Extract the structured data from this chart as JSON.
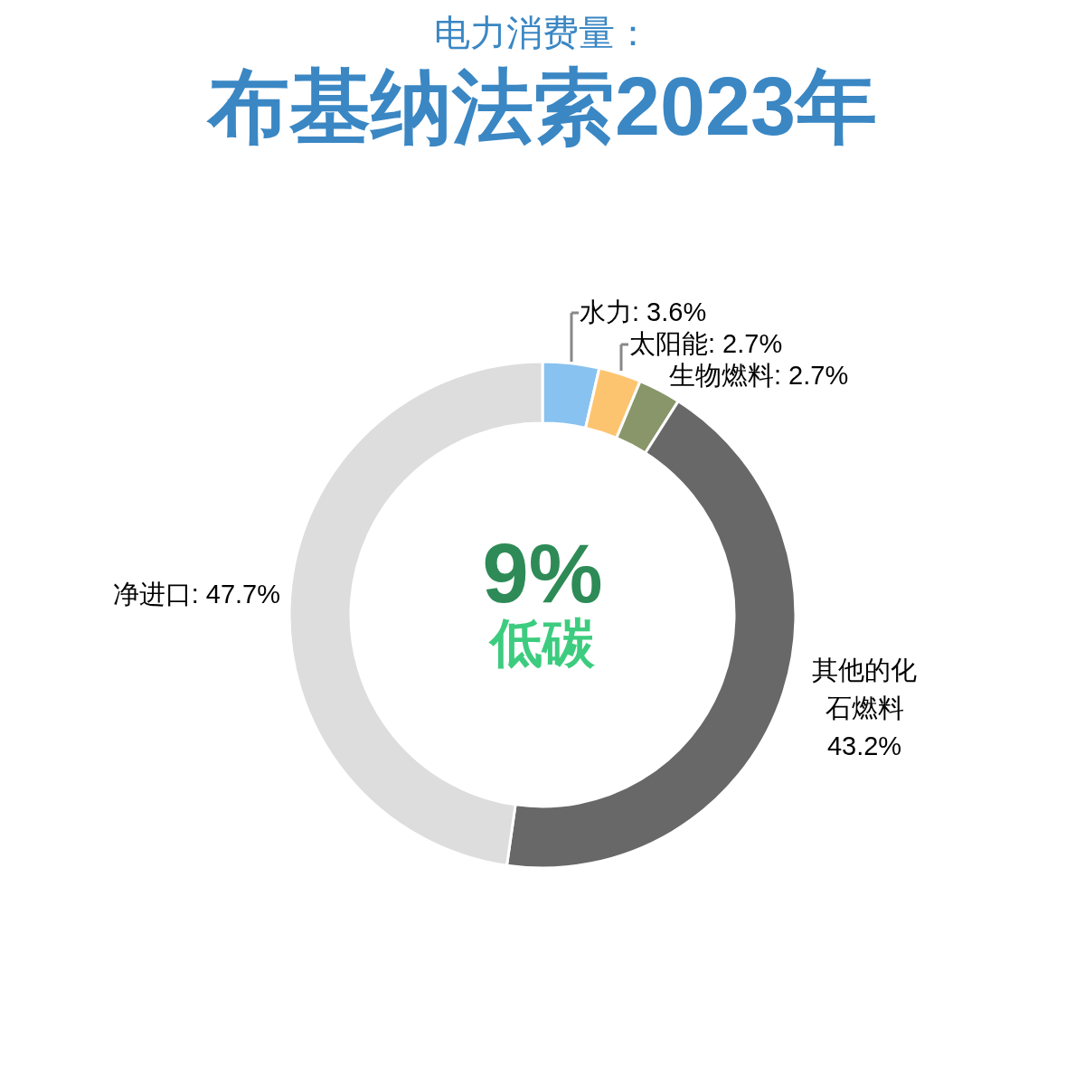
{
  "chart_data": {
    "type": "donut",
    "subtitle": "电力消费量：",
    "title": "布基纳法索2023年",
    "categories": [
      "水力",
      "太阳能",
      "生物燃料",
      "其他的化石燃料",
      "净进口"
    ],
    "values": [
      3.6,
      2.7,
      2.7,
      43.2,
      47.7
    ],
    "colors": [
      "#88c2f0",
      "#fdc470",
      "#88966a",
      "#686868",
      "#dddddd"
    ],
    "value_labels": [
      "3.6%",
      "2.7%",
      "2.7%",
      "43.2%",
      "47.7%"
    ],
    "annotations": [
      "9%",
      "低碳"
    ]
  }
}
